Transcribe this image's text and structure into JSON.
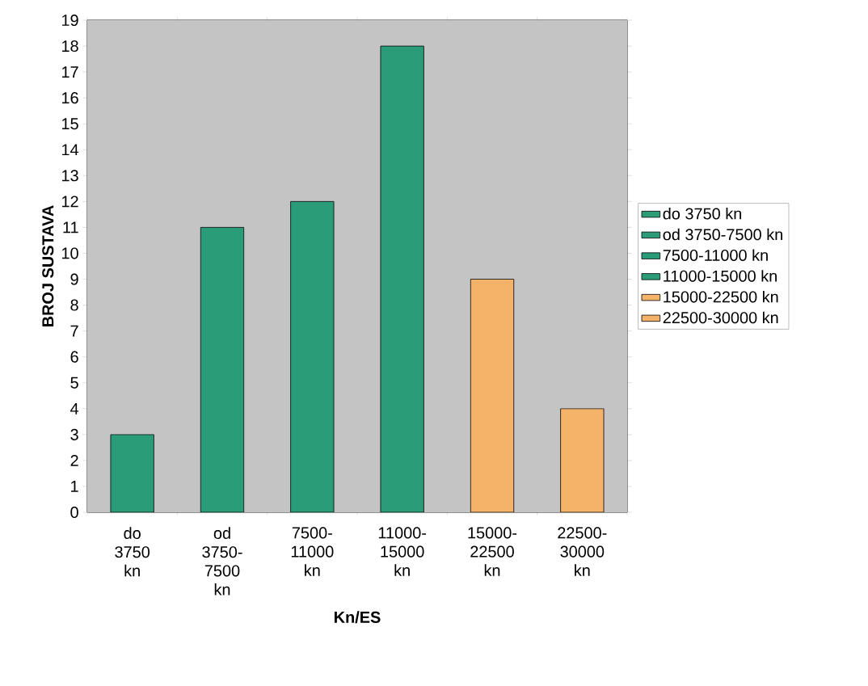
{
  "chart_data": {
    "type": "bar",
    "xlabel": "Kn/ES",
    "ylabel": "BROJ SUSTAVA",
    "categories": [
      "do 3750 kn",
      "od 3750-7500 kn",
      "7500-11000 kn",
      "11000-15000 kn",
      "15000-22500 kn",
      "22500-30000 kn"
    ],
    "series": [
      {
        "name": "do 3750 kn",
        "color": "#2a9d78",
        "values": [
          3,
          null,
          null,
          null,
          null,
          null
        ]
      },
      {
        "name": "od 3750-7500 kn",
        "color": "#2a9d78",
        "values": [
          null,
          11,
          null,
          null,
          null,
          null
        ]
      },
      {
        "name": "7500-11000 kn",
        "color": "#2a9d78",
        "values": [
          null,
          null,
          12,
          null,
          null,
          null
        ]
      },
      {
        "name": "11000-15000 kn",
        "color": "#2a9d78",
        "values": [
          null,
          null,
          null,
          18,
          null,
          null
        ]
      },
      {
        "name": "15000-22500 kn",
        "color": "#f5b36a",
        "values": [
          null,
          null,
          null,
          null,
          9,
          null
        ]
      },
      {
        "name": "22500-30000 kn",
        "color": "#f5b36a",
        "values": [
          null,
          null,
          null,
          null,
          null,
          4
        ]
      }
    ],
    "ylim": [
      0,
      19
    ],
    "yticks": [
      0,
      1,
      2,
      3,
      4,
      5,
      6,
      7,
      8,
      9,
      10,
      11,
      12,
      13,
      14,
      15,
      16,
      17,
      18,
      19
    ],
    "grid": true,
    "legend": "right"
  }
}
